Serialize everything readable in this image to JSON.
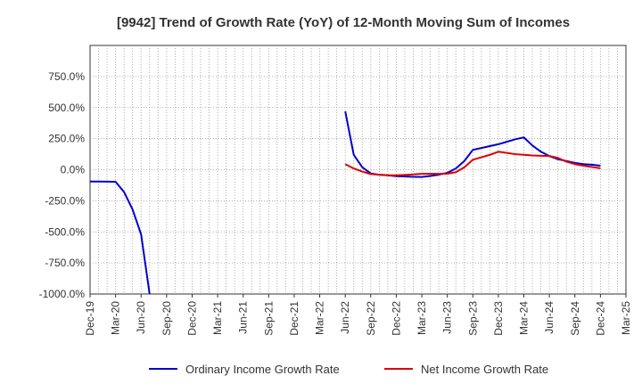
{
  "chart_data": {
    "type": "line",
    "title": "[9942]  Trend of Growth Rate (YoY) of 12-Month Moving Sum of Incomes",
    "xlabel": "",
    "ylabel": "",
    "ylim": [
      -1000,
      1000
    ],
    "yticks": [
      -1000,
      -750,
      -500,
      -250,
      0,
      250,
      500,
      750
    ],
    "ytick_labels": [
      "-1000.0%",
      "-750.0%",
      "-500.0%",
      "-250.0%",
      "0.0%",
      "250.0%",
      "500.0%",
      "750.0%"
    ],
    "x_start": "2019-12",
    "x_end": "2025-03",
    "xtick_labels": [
      "Dec-19",
      "Mar-20",
      "Jun-20",
      "Sep-20",
      "Dec-20",
      "Mar-21",
      "Jun-21",
      "Sep-21",
      "Dec-21",
      "Mar-22",
      "Jun-22",
      "Sep-22",
      "Dec-22",
      "Mar-23",
      "Jun-23",
      "Sep-23",
      "Dec-23",
      "Mar-24",
      "Jun-24",
      "Sep-24",
      "Dec-24",
      "Mar-25"
    ],
    "grid": true,
    "legend_position": "bottom",
    "series": [
      {
        "name": "Ordinary Income Growth Rate",
        "color": "#0000cc",
        "points": [
          [
            "2019-12",
            -95
          ],
          [
            "2020-01",
            -95
          ],
          [
            "2020-02",
            -96
          ],
          [
            "2020-03",
            -97
          ],
          [
            "2020-04",
            -180
          ],
          [
            "2020-05",
            -320
          ],
          [
            "2020-06",
            -520
          ],
          [
            "2020-07",
            -1000
          ],
          [
            "2022-06",
            470
          ],
          [
            "2022-07",
            120
          ],
          [
            "2022-08",
            20
          ],
          [
            "2022-09",
            -30
          ],
          [
            "2022-10",
            -40
          ],
          [
            "2022-11",
            -45
          ],
          [
            "2022-12",
            -52
          ],
          [
            "2023-01",
            -55
          ],
          [
            "2023-02",
            -57
          ],
          [
            "2023-03",
            -58
          ],
          [
            "2023-04",
            -50
          ],
          [
            "2023-05",
            -40
          ],
          [
            "2023-06",
            -25
          ],
          [
            "2023-07",
            10
          ],
          [
            "2023-08",
            70
          ],
          [
            "2023-09",
            160
          ],
          [
            "2023-10",
            175
          ],
          [
            "2023-11",
            190
          ],
          [
            "2023-12",
            205
          ],
          [
            "2024-01",
            225
          ],
          [
            "2024-02",
            245
          ],
          [
            "2024-03",
            260
          ],
          [
            "2024-04",
            195
          ],
          [
            "2024-05",
            145
          ],
          [
            "2024-06",
            110
          ],
          [
            "2024-07",
            85
          ],
          [
            "2024-08",
            70
          ],
          [
            "2024-09",
            55
          ],
          [
            "2024-10",
            45
          ],
          [
            "2024-11",
            40
          ],
          [
            "2024-12",
            32
          ]
        ]
      },
      {
        "name": "Net Income Growth Rate",
        "color": "#dd0000",
        "points": [
          [
            "2022-06",
            45
          ],
          [
            "2022-07",
            10
          ],
          [
            "2022-08",
            -15
          ],
          [
            "2022-09",
            -35
          ],
          [
            "2022-10",
            -40
          ],
          [
            "2022-11",
            -44
          ],
          [
            "2022-12",
            -45
          ],
          [
            "2023-01",
            -42
          ],
          [
            "2023-02",
            -38
          ],
          [
            "2023-03",
            -33
          ],
          [
            "2023-04",
            -32
          ],
          [
            "2023-05",
            -33
          ],
          [
            "2023-06",
            -32
          ],
          [
            "2023-07",
            -20
          ],
          [
            "2023-08",
            20
          ],
          [
            "2023-09",
            80
          ],
          [
            "2023-10",
            100
          ],
          [
            "2023-11",
            120
          ],
          [
            "2023-12",
            145
          ],
          [
            "2024-01",
            135
          ],
          [
            "2024-02",
            125
          ],
          [
            "2024-03",
            120
          ],
          [
            "2024-04",
            115
          ],
          [
            "2024-05",
            112
          ],
          [
            "2024-06",
            110
          ],
          [
            "2024-07",
            95
          ],
          [
            "2024-08",
            65
          ],
          [
            "2024-09",
            45
          ],
          [
            "2024-10",
            32
          ],
          [
            "2024-11",
            22
          ],
          [
            "2024-12",
            12
          ]
        ]
      }
    ]
  }
}
